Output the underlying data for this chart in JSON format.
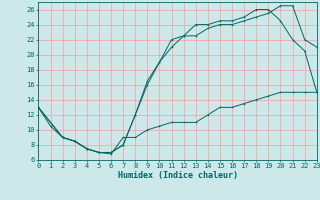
{
  "xlabel": "Humidex (Indice chaleur)",
  "bg_color": "#cde8e8",
  "line_color": "#006666",
  "grid_color": "#ff9999",
  "xlim": [
    0,
    23
  ],
  "ylim": [
    6,
    27
  ],
  "xticks": [
    0,
    1,
    2,
    3,
    4,
    5,
    6,
    7,
    8,
    9,
    10,
    11,
    12,
    13,
    14,
    15,
    16,
    17,
    18,
    19,
    20,
    21,
    22,
    23
  ],
  "yticks": [
    6,
    8,
    10,
    12,
    14,
    16,
    18,
    20,
    22,
    24,
    26
  ],
  "line1_x": [
    0,
    1,
    2,
    3,
    4,
    5,
    6,
    7,
    8,
    9,
    10,
    11,
    12,
    13,
    14,
    15,
    16,
    17,
    18,
    19,
    20,
    21,
    22,
    23
  ],
  "line1_y": [
    13,
    10.5,
    9,
    8.5,
    7.5,
    7,
    6.8,
    9,
    9,
    10,
    10.5,
    11,
    11,
    11,
    12,
    13,
    13,
    13.5,
    14,
    14.5,
    15,
    15,
    15,
    15
  ],
  "line2_x": [
    0,
    2,
    3,
    4,
    5,
    6,
    7,
    8,
    9,
    10,
    11,
    12,
    13,
    14,
    15,
    16,
    17,
    18,
    19,
    20,
    21,
    22,
    23
  ],
  "line2_y": [
    13,
    9,
    8.5,
    7.5,
    7,
    7,
    8,
    12,
    16,
    19,
    21,
    22.5,
    22.5,
    23.5,
    24,
    24,
    24.5,
    25,
    25.5,
    26.5,
    26.5,
    22,
    21
  ],
  "line3_x": [
    0,
    2,
    3,
    4,
    5,
    6,
    7,
    8,
    9,
    10,
    11,
    12,
    13,
    14,
    15,
    16,
    17,
    18,
    19,
    20,
    21,
    22,
    23
  ],
  "line3_y": [
    13,
    9,
    8.5,
    7.5,
    7,
    7,
    8,
    12,
    16.5,
    19,
    22,
    22.5,
    24,
    24,
    24.5,
    24.5,
    25,
    26,
    26,
    24.5,
    22,
    20.5,
    15
  ]
}
